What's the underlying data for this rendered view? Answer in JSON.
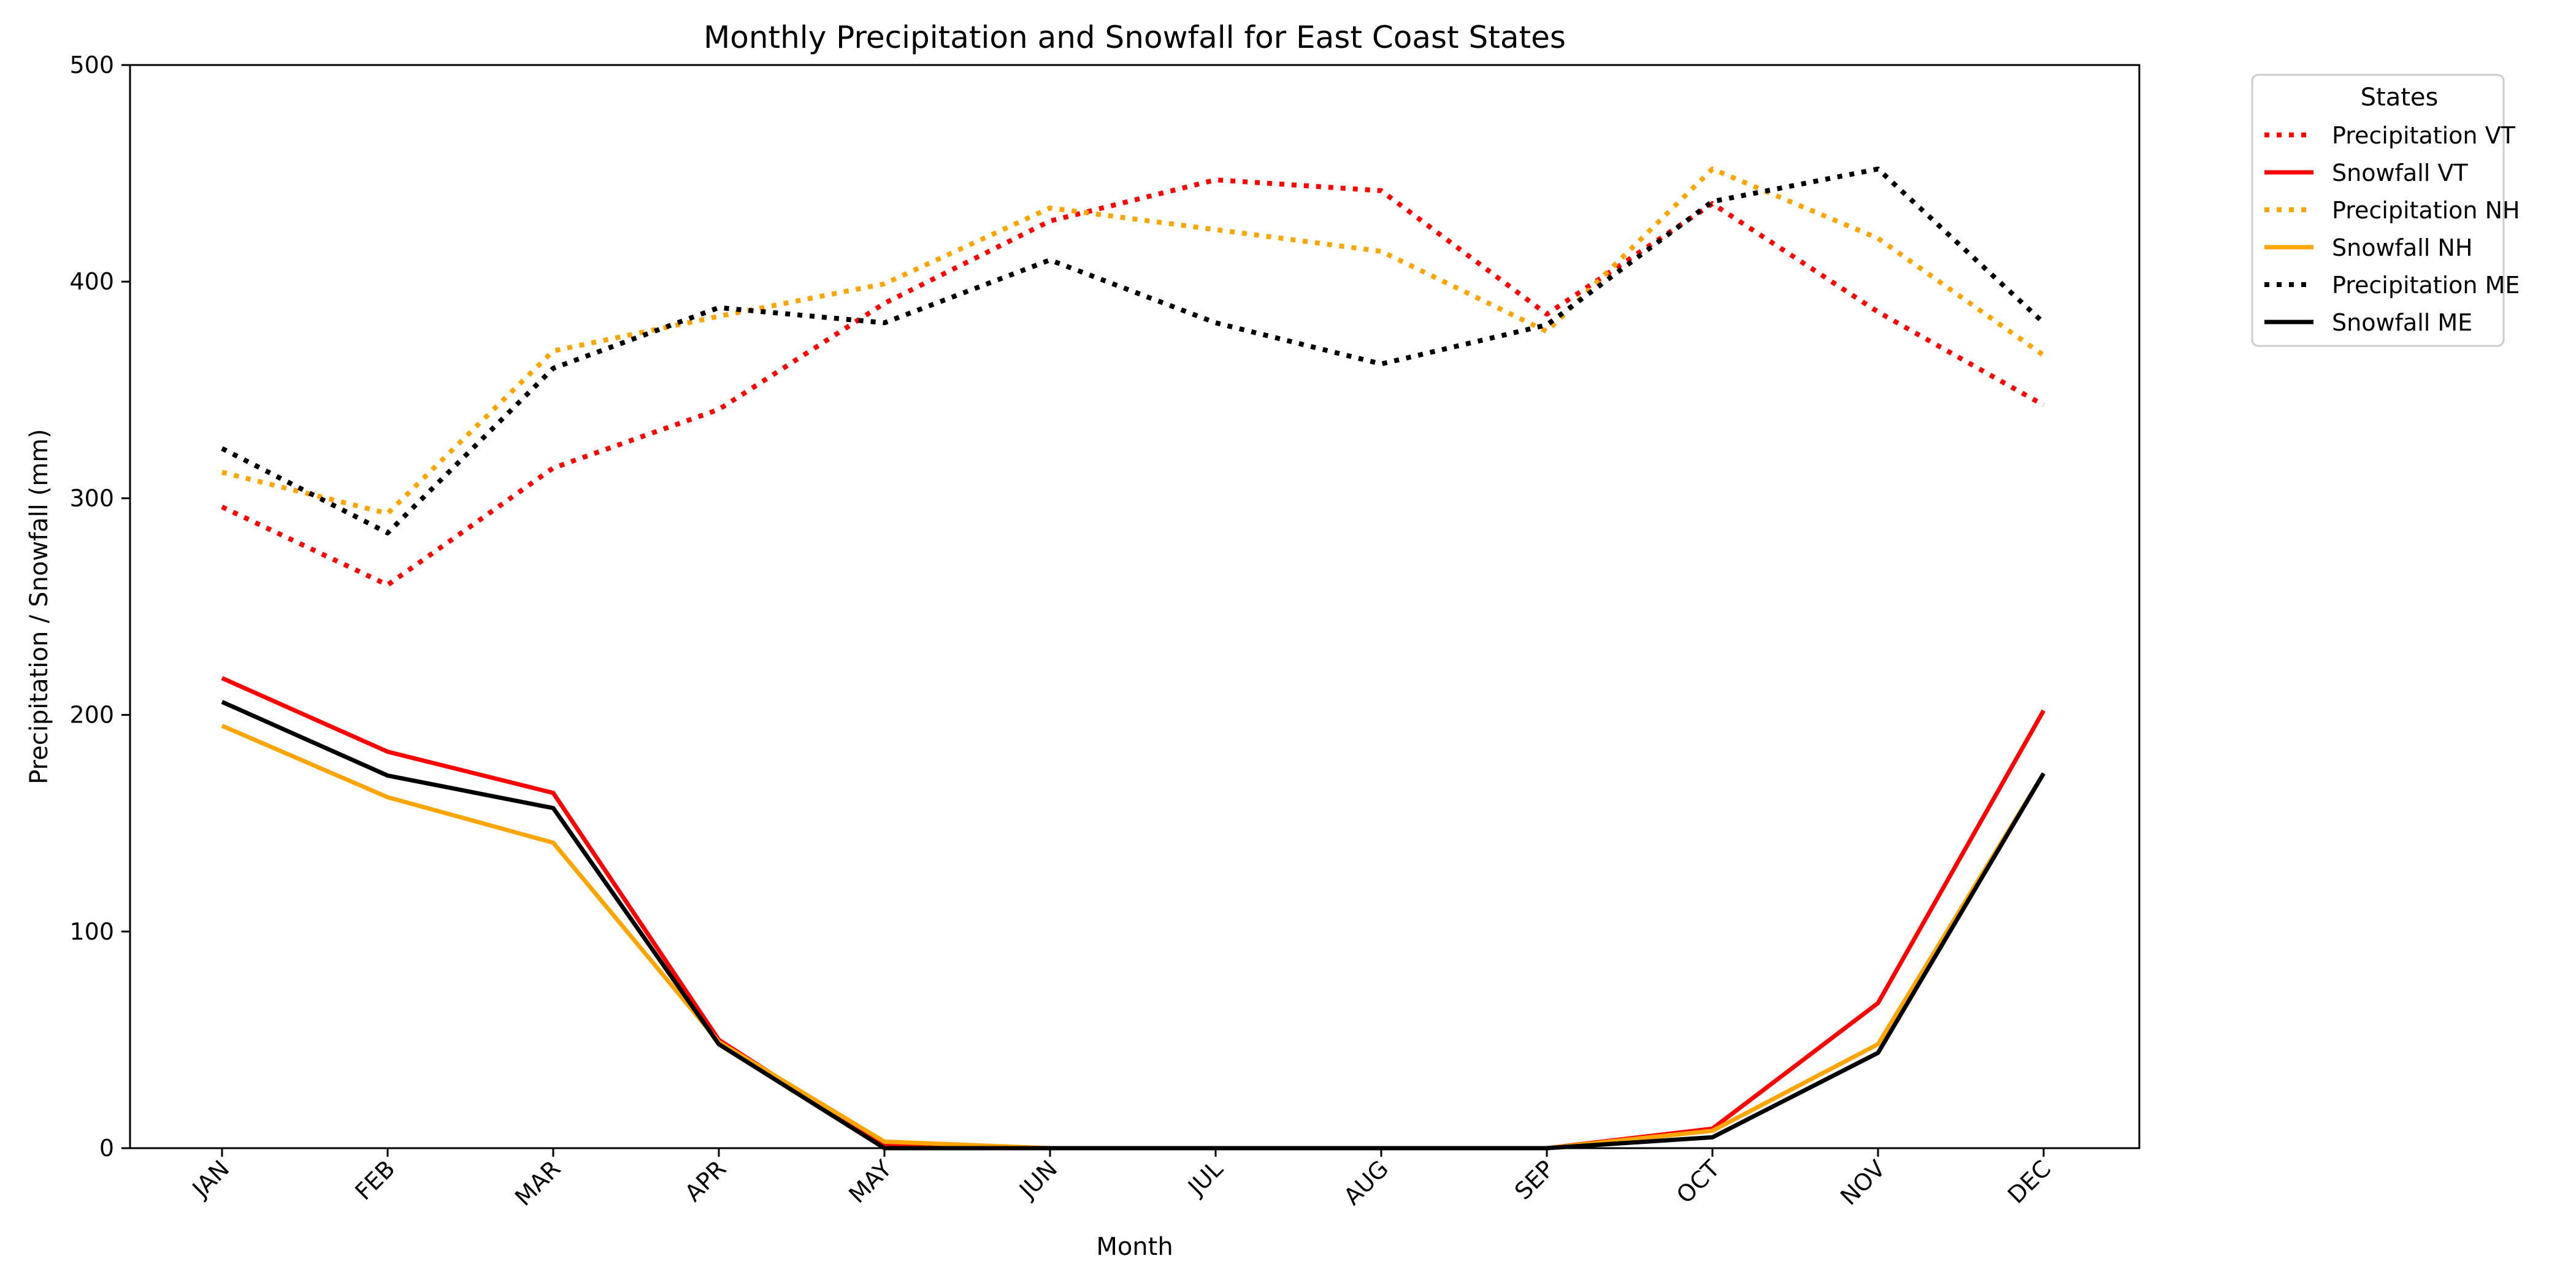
{
  "chart_data": {
    "type": "line",
    "title": "Monthly Precipitation and Snowfall for East Coast States",
    "xlabel": "Month",
    "ylabel": "Precipitation / Snowfall (mm)",
    "ylim": [
      0,
      500
    ],
    "yticks": [
      0,
      100,
      200,
      300,
      400,
      500
    ],
    "grid": false,
    "legend": {
      "title": "States",
      "placement": "outside-top-right"
    },
    "categories": [
      "JAN",
      "FEB",
      "MAR",
      "APR",
      "MAY",
      "JUN",
      "JUL",
      "AUG",
      "SEP",
      "OCT",
      "NOV",
      "DEC"
    ],
    "series": [
      {
        "name": "Precipitation VT",
        "color": "#ff0000",
        "style": "dotted",
        "values": [
          296,
          260,
          314,
          341,
          390,
          428,
          447,
          442,
          385,
          436,
          386,
          343
        ]
      },
      {
        "name": "Snowfall VT",
        "color": "#ff0000",
        "style": "solid",
        "values": [
          217,
          183,
          164,
          50,
          1,
          0,
          0,
          0,
          0,
          9,
          67,
          202
        ]
      },
      {
        "name": "Precipitation NH",
        "color": "#ffa500",
        "style": "dotted",
        "values": [
          312,
          293,
          368,
          384,
          399,
          434,
          424,
          414,
          377,
          452,
          420,
          366
        ]
      },
      {
        "name": "Snowfall NH",
        "color": "#ffa500",
        "style": "solid",
        "values": [
          195,
          162,
          141,
          49,
          3,
          0,
          0,
          0,
          0,
          8,
          48,
          173
        ]
      },
      {
        "name": "Precipitation ME",
        "color": "#000000",
        "style": "dotted",
        "values": [
          323,
          284,
          360,
          388,
          381,
          410,
          381,
          362,
          380,
          437,
          452,
          381
        ]
      },
      {
        "name": "Snowfall ME",
        "color": "#000000",
        "style": "solid",
        "values": [
          206,
          172,
          157,
          48,
          0,
          0,
          0,
          0,
          0,
          5,
          44,
          173
        ]
      }
    ]
  }
}
